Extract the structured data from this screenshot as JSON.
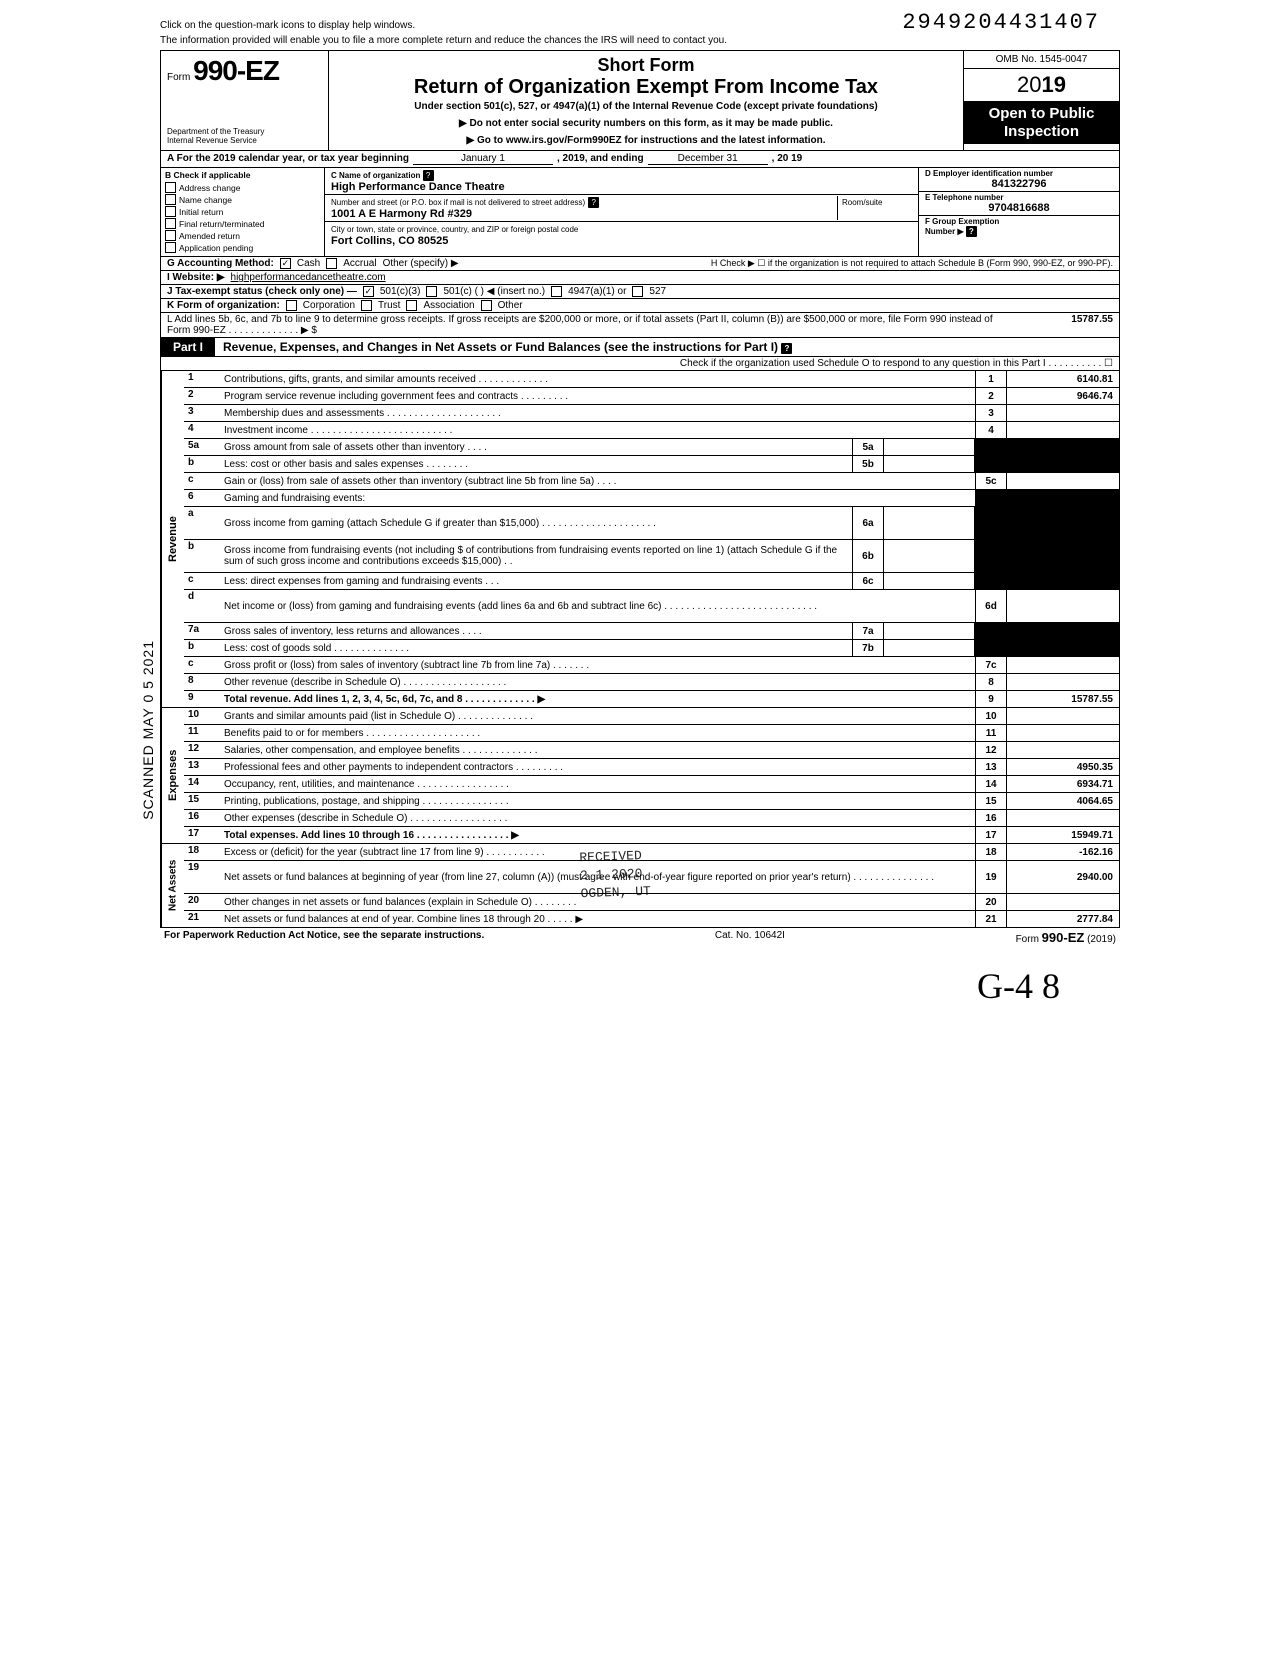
{
  "doc_id": "2949204431407",
  "top_note1": "Click on the question-mark icons to display help windows.",
  "top_note2": "The information provided will enable you to file a more complete return and reduce the chances the IRS will need to contact you.",
  "form": {
    "prefix": "Form",
    "number": "990-EZ",
    "dept1": "Department of the Treasury",
    "dept2": "Internal Revenue Service"
  },
  "header": {
    "short": "Short Form",
    "title": "Return of Organization Exempt From Income Tax",
    "sub": "Under section 501(c), 527, or 4947(a)(1) of the Internal Revenue Code (except private foundations)",
    "note1": "▶ Do not enter social security numbers on this form, as it may be made public.",
    "note2": "▶ Go to www.irs.gov/Form990EZ for instructions and the latest information.",
    "omb": "OMB No. 1545-0047",
    "year_prefix": "20",
    "year_bold": "19",
    "open1": "Open to Public",
    "open2": "Inspection"
  },
  "rowA": {
    "label": "A For the 2019 calendar year, or tax year beginning",
    "begin": "January 1",
    "mid": ", 2019, and ending",
    "end": "December 31",
    "year": ", 20   19"
  },
  "B": {
    "header": "B Check if applicable",
    "items": [
      "Address change",
      "Name change",
      "Initial return",
      "Final return/terminated",
      "Amended return",
      "Application pending"
    ]
  },
  "C": {
    "name_lbl": "C Name of organization",
    "name": "High Performance Dance Theatre",
    "street_lbl": "Number and street (or P.O. box if mail is not delivered to street address)",
    "room_lbl": "Room/suite",
    "street": "1001 A E Harmony Rd #329",
    "city_lbl": "City or town, state or province, country, and ZIP or foreign postal code",
    "city": "Fort Collins, CO 80525"
  },
  "D": {
    "lbl": "D Employer identification number",
    "val": "841322796"
  },
  "E": {
    "lbl": "E Telephone number",
    "val": "9704816688"
  },
  "F": {
    "lbl": "F Group Exemption",
    "lbl2": "Number ▶"
  },
  "G": {
    "label": "G Accounting Method:",
    "opts": [
      "Cash",
      "Accrual",
      "Other (specify) ▶"
    ],
    "checked": 0
  },
  "H": {
    "text": "H Check ▶ ☐ if the organization is not required to attach Schedule B (Form 990, 990-EZ, or 990-PF)."
  },
  "I": {
    "label": "I  Website: ▶",
    "val": "highperformancedancetheatre.com"
  },
  "J": {
    "label": "J Tax-exempt status (check only one) —",
    "opts": [
      "501(c)(3)",
      "501(c) (        ) ◀ (insert no.)",
      "4947(a)(1) or",
      "527"
    ],
    "checked": 0
  },
  "K": {
    "label": "K Form of organization:",
    "opts": [
      "Corporation",
      "Trust",
      "Association",
      "Other"
    ]
  },
  "L": {
    "text": "L Add lines 5b, 6c, and 7b to line 9 to determine gross receipts. If gross receipts are $200,000 or more, or if total assets (Part II, column (B)) are $500,000 or more, file Form 990 instead of Form 990-EZ . . . . . . . . . . . . . ▶  $",
    "val": "15787.55"
  },
  "part1": {
    "label": "Part I",
    "title": "Revenue, Expenses, and Changes in Net Assets or Fund Balances (see the instructions for Part I)",
    "checkline": "Check if the organization used Schedule O to respond to any question in this Part I . . . . . . . . . . ☐"
  },
  "sections": {
    "revenue": "Revenue",
    "expenses": "Expenses",
    "netassets": "Net Assets"
  },
  "lines": [
    {
      "n": "1",
      "t": "Contributions, gifts, grants, and similar amounts received . . . . . . . . . . . . .",
      "rn": "1",
      "rv": "6140.81"
    },
    {
      "n": "2",
      "t": "Program service revenue including government fees and contracts . . . . . . . . .",
      "rn": "2",
      "rv": "9646.74"
    },
    {
      "n": "3",
      "t": "Membership dues and assessments . . . . . . . . . . . . . . . . . . . . .",
      "rn": "3",
      "rv": ""
    },
    {
      "n": "4",
      "t": "Investment income . . . . . . . . . . . . . . . . . . . . . . . . . .",
      "rn": "4",
      "rv": ""
    },
    {
      "n": "5a",
      "t": "Gross amount from sale of assets other than inventory . . . .",
      "mn": "5a",
      "mv": "",
      "shade": true
    },
    {
      "n": "b",
      "t": "Less: cost or other basis and sales expenses . . . . . . . .",
      "mn": "5b",
      "mv": "",
      "shade": true
    },
    {
      "n": "c",
      "t": "Gain or (loss) from sale of assets other than inventory (subtract line 5b from line 5a) . . . .",
      "rn": "5c",
      "rv": ""
    },
    {
      "n": "6",
      "t": "Gaming and fundraising events:",
      "shade": true,
      "noborder": true
    },
    {
      "n": "a",
      "t": "Gross income from gaming (attach Schedule G if greater than $15,000) . . . . . . . . . . . . . . . . . . . . .",
      "mn": "6a",
      "mv": "",
      "shade": true,
      "tall": true
    },
    {
      "n": "b",
      "t": "Gross income from fundraising events (not including  $                    of contributions from fundraising events reported on line 1) (attach Schedule G if the sum of such gross income and contributions exceeds $15,000) . .",
      "mn": "6b",
      "mv": "",
      "shade": true,
      "tall": true
    },
    {
      "n": "c",
      "t": "Less: direct expenses from gaming and fundraising events . . .",
      "mn": "6c",
      "mv": "",
      "shade": true
    },
    {
      "n": "d",
      "t": "Net income or (loss) from gaming and fundraising events (add lines 6a and 6b and subtract line 6c) . . . . . . . . . . . . . . . . . . . . . . . . . . . .",
      "rn": "6d",
      "rv": "",
      "tall": true
    },
    {
      "n": "7a",
      "t": "Gross sales of inventory, less returns and allowances . . . .",
      "mn": "7a",
      "mv": "",
      "shade": true
    },
    {
      "n": "b",
      "t": "Less: cost of goods sold . . . . . . . . . . . . . .",
      "mn": "7b",
      "mv": "",
      "shade": true
    },
    {
      "n": "c",
      "t": "Gross profit or (loss) from sales of inventory (subtract line 7b from line 7a) . . . . . . .",
      "rn": "7c",
      "rv": ""
    },
    {
      "n": "8",
      "t": "Other revenue (describe in Schedule O) . . . . . . . . . . . . . . . . . . .",
      "rn": "8",
      "rv": ""
    },
    {
      "n": "9",
      "t": "Total revenue. Add lines 1, 2, 3, 4, 5c, 6d, 7c, and 8 . . . . . . . . . . . . . ▶",
      "rn": "9",
      "rv": "15787.55",
      "bold": true
    }
  ],
  "expenses": [
    {
      "n": "10",
      "t": "Grants and similar amounts paid (list in Schedule O) . . . . . . . . . . . . . .",
      "rn": "10",
      "rv": ""
    },
    {
      "n": "11",
      "t": "Benefits paid to or for members . . . . . . . . . . . . . . . . . . . . .",
      "rn": "11",
      "rv": ""
    },
    {
      "n": "12",
      "t": "Salaries, other compensation, and employee benefits . . . . . . . . . . . . . .",
      "rn": "12",
      "rv": ""
    },
    {
      "n": "13",
      "t": "Professional fees and other payments to independent contractors . . . . . . . . .",
      "rn": "13",
      "rv": "4950.35"
    },
    {
      "n": "14",
      "t": "Occupancy, rent, utilities, and maintenance . . . . . . . . . . . . . . . . .",
      "rn": "14",
      "rv": "6934.71"
    },
    {
      "n": "15",
      "t": "Printing, publications, postage, and shipping . . . . . . . . . . . . . . . .",
      "rn": "15",
      "rv": "4064.65"
    },
    {
      "n": "16",
      "t": "Other expenses (describe in Schedule O) . . . . . . . . . . . . . . . . . .",
      "rn": "16",
      "rv": ""
    },
    {
      "n": "17",
      "t": "Total expenses. Add lines 10 through 16 . . . . . . . . . . . . . . . . . ▶",
      "rn": "17",
      "rv": "15949.71",
      "bold": true
    }
  ],
  "netassets": [
    {
      "n": "18",
      "t": "Excess or (deficit) for the year (subtract line 17 from line 9) . . . . . . . . . . .",
      "rn": "18",
      "rv": "-162.16"
    },
    {
      "n": "19",
      "t": "Net assets or fund balances at beginning of year (from line 27, column (A)) (must agree with end-of-year figure reported on prior year's return) . . . . . . . . . . . . . . .",
      "rn": "19",
      "rv": "2940.00",
      "tall": true
    },
    {
      "n": "20",
      "t": "Other changes in net assets or fund balances (explain in Schedule O) . . . . . . . .",
      "rn": "20",
      "rv": ""
    },
    {
      "n": "21",
      "t": "Net assets or fund balances at end of year. Combine lines 18 through 20 . . . . . ▶",
      "rn": "21",
      "rv": "2777.84"
    }
  ],
  "footer": {
    "left": "For Paperwork Reduction Act Notice, see the separate instructions.",
    "mid": "Cat. No. 10642I",
    "right_pre": "Form ",
    "right_form": "990-EZ",
    "right_year": " (2019)"
  },
  "scan_stamp": "SCANNED MAY 0 5 2021",
  "received_stamp": {
    "l1": "RECEIVED",
    "l2": "2 1 2020",
    "l3": "OGDEN, UT"
  },
  "hand": "G-4 8"
}
